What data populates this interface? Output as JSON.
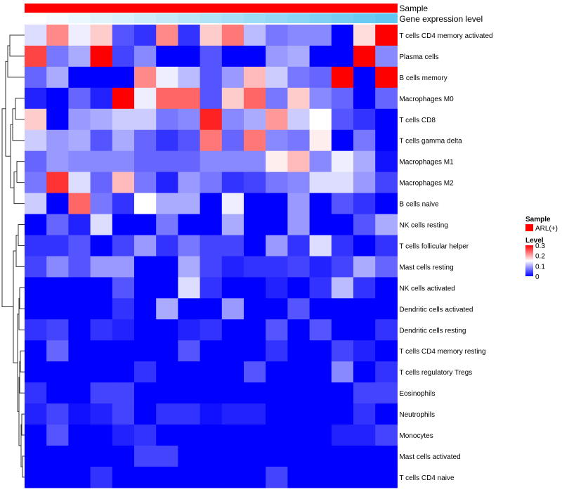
{
  "chart_data": {
    "type": "heatmap",
    "annotation_tracks": [
      {
        "name": "Sample",
        "color": "#ff0000"
      },
      {
        "name": "Gene expression level",
        "gradient": [
          "#ffffff",
          "#5bc4f1"
        ]
      }
    ],
    "rows": [
      "T cells CD4 memory activated",
      "Plasma cells",
      "B cells memory",
      "Macrophages M0",
      "T cells CD8",
      "T cells gamma delta",
      "Macrophages M1",
      "Macrophages M2",
      "B cells naive",
      "NK cells resting",
      "T cells follicular helper",
      "Mast cells resting",
      "NK cells activated",
      "Dendritic cells activated",
      "Dendritic cells resting",
      "T cells CD4 memory resting",
      "T cells regulatory  Tregs",
      "Eosinophils",
      "Neutrophils",
      "Monocytes",
      "Mast cells activated",
      "T cells CD4 naive"
    ],
    "columns": 17,
    "values": [
      [
        0.13,
        0.22,
        0.14,
        0.18,
        0.05,
        0.03,
        0.22,
        0.03,
        0.18,
        0.23,
        0.11,
        0.07,
        0.08,
        0.08,
        0.0,
        0.17,
        0.3
      ],
      [
        0.26,
        0.07,
        0.1,
        0.3,
        0.04,
        0.08,
        0.0,
        0.0,
        0.05,
        0.0,
        0.0,
        0.09,
        0.1,
        0.0,
        0.0,
        0.3,
        0.08
      ],
      [
        0.06,
        0.1,
        0.0,
        0.0,
        0.0,
        0.22,
        0.14,
        0.11,
        0.05,
        0.09,
        0.19,
        0.12,
        0.07,
        0.06,
        0.3,
        0.0,
        0.3
      ],
      [
        0.02,
        0.0,
        0.06,
        0.02,
        0.3,
        0.14,
        0.24,
        0.24,
        0.05,
        0.18,
        0.24,
        0.07,
        0.18,
        0.08,
        0.06,
        0.0,
        0.06
      ],
      [
        0.18,
        0.0,
        0.09,
        0.1,
        0.12,
        0.12,
        0.07,
        0.08,
        0.28,
        0.08,
        0.1,
        0.21,
        0.12,
        0.15,
        0.05,
        0.03,
        0.0
      ],
      [
        0.12,
        0.09,
        0.1,
        0.05,
        0.1,
        0.06,
        0.03,
        0.05,
        0.23,
        0.06,
        0.23,
        0.08,
        0.07,
        0.16,
        0.0,
        0.07,
        0.0
      ],
      [
        0.06,
        0.09,
        0.08,
        0.08,
        0.08,
        0.06,
        0.06,
        0.06,
        0.08,
        0.08,
        0.08,
        0.16,
        0.19,
        0.08,
        0.14,
        0.1,
        0.01
      ],
      [
        0.07,
        0.27,
        0.13,
        0.06,
        0.19,
        0.07,
        0.02,
        0.09,
        0.07,
        0.03,
        0.04,
        0.07,
        0.08,
        0.13,
        0.13,
        0.09,
        0.04
      ],
      [
        0.12,
        0.0,
        0.24,
        0.07,
        0.03,
        0.15,
        0.1,
        0.1,
        0.0,
        0.14,
        0.0,
        0.0,
        0.09,
        0.0,
        0.05,
        0.03,
        0.0
      ],
      [
        0.0,
        0.06,
        0.02,
        0.13,
        0.0,
        0.0,
        0.07,
        0.0,
        0.0,
        0.1,
        0.0,
        0.0,
        0.09,
        0.0,
        0.0,
        0.05,
        0.1
      ],
      [
        0.03,
        0.03,
        0.05,
        0.0,
        0.04,
        0.09,
        0.03,
        0.07,
        0.04,
        0.04,
        0.0,
        0.09,
        0.03,
        0.13,
        0.03,
        0.0,
        0.03
      ],
      [
        0.04,
        0.08,
        0.05,
        0.09,
        0.09,
        0.0,
        0.0,
        0.1,
        0.04,
        0.02,
        0.03,
        0.03,
        0.04,
        0.02,
        0.04,
        0.1,
        0.06
      ],
      [
        0.0,
        0.0,
        0.0,
        0.0,
        0.05,
        0.0,
        0.0,
        0.13,
        0.03,
        0.0,
        0.0,
        0.02,
        0.0,
        0.03,
        0.11,
        0.03,
        0.0
      ],
      [
        0.0,
        0.0,
        0.0,
        0.0,
        0.03,
        0.0,
        0.1,
        0.0,
        0.0,
        0.09,
        0.0,
        0.0,
        0.05,
        0.0,
        0.0,
        0.0,
        0.0
      ],
      [
        0.03,
        0.04,
        0.0,
        0.03,
        0.02,
        0.0,
        0.0,
        0.02,
        0.03,
        0.0,
        0.0,
        0.05,
        0.0,
        0.05,
        0.0,
        0.0,
        0.03
      ],
      [
        0.0,
        0.06,
        0.0,
        0.0,
        0.0,
        0.0,
        0.0,
        0.05,
        0.0,
        0.0,
        0.0,
        0.03,
        0.0,
        0.0,
        0.04,
        0.02,
        0.0
      ],
      [
        0.0,
        0.0,
        0.0,
        0.0,
        0.0,
        0.03,
        0.0,
        0.0,
        0.0,
        0.0,
        0.05,
        0.0,
        0.0,
        0.0,
        0.08,
        0.0,
        0.03
      ],
      [
        0.03,
        0.0,
        0.0,
        0.04,
        0.04,
        0.0,
        0.0,
        0.0,
        0.0,
        0.0,
        0.0,
        0.0,
        0.0,
        0.0,
        0.0,
        0.04,
        0.04
      ],
      [
        0.02,
        0.04,
        0.01,
        0.02,
        0.04,
        0.0,
        0.03,
        0.03,
        0.01,
        0.02,
        0.02,
        0.0,
        0.0,
        0.0,
        0.0,
        0.03,
        0.0
      ],
      [
        0.0,
        0.05,
        0.0,
        0.0,
        0.02,
        0.03,
        0.0,
        0.0,
        0.0,
        0.0,
        0.0,
        0.0,
        0.0,
        0.0,
        0.02,
        0.02,
        0.04
      ],
      [
        0.0,
        0.0,
        0.0,
        0.0,
        0.0,
        0.04,
        0.04,
        0.0,
        0.0,
        0.0,
        0.0,
        0.0,
        0.0,
        0.0,
        0.0,
        0.0,
        0.0
      ],
      [
        0.0,
        0.0,
        0.0,
        0.03,
        0.0,
        0.0,
        0.0,
        0.0,
        0.0,
        0.0,
        0.0,
        0.04,
        0.0,
        0.0,
        0.0,
        0.0,
        0.0
      ]
    ],
    "gene_expression_level": [
      0.0,
      0.06,
      0.12,
      0.18,
      0.24,
      0.3,
      0.36,
      0.42,
      0.48,
      0.54,
      0.6,
      0.66,
      0.72,
      0.78,
      0.84,
      0.9,
      0.96
    ],
    "color_scale": {
      "min": 0,
      "mid": 0.15,
      "max": 0.3,
      "low": "#0000ff",
      "mid_color": "#ffffff",
      "high": "#ff0000"
    },
    "legend": {
      "sample_title": "Sample",
      "sample_label": "ARL(+)",
      "sample_color": "#ff0000",
      "level_title": "Level",
      "level_ticks": [
        "0.3",
        "0.2",
        "0.1",
        "0"
      ],
      "placement": "right"
    }
  }
}
